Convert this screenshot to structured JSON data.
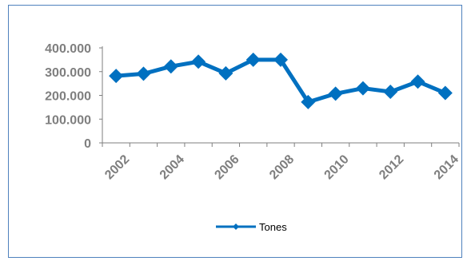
{
  "colors": {
    "series": "#0070c0",
    "axis": "#7f7f7f",
    "frame": "#4f81bd"
  },
  "chart_data": {
    "type": "line",
    "x": [
      "2002",
      "2003",
      "2004",
      "2005",
      "2006",
      "2007",
      "2008",
      "2009",
      "2010",
      "2011",
      "2012",
      "2013",
      "2014"
    ],
    "x_tick_labels": [
      "2002",
      "2004",
      "2006",
      "2008",
      "2010",
      "2012",
      "2014"
    ],
    "y_tick_labels": [
      "0",
      "100.000",
      "200.000",
      "300.000",
      "400.000"
    ],
    "ylim": [
      0,
      400000
    ],
    "series": [
      {
        "name": "Tones",
        "marker": "diamond",
        "values": [
          282000,
          291000,
          322000,
          342000,
          293000,
          350000,
          350000,
          172000,
          207000,
          230000,
          215000,
          258000,
          210000
        ]
      }
    ],
    "legend": "bottom-center",
    "grid": false
  }
}
